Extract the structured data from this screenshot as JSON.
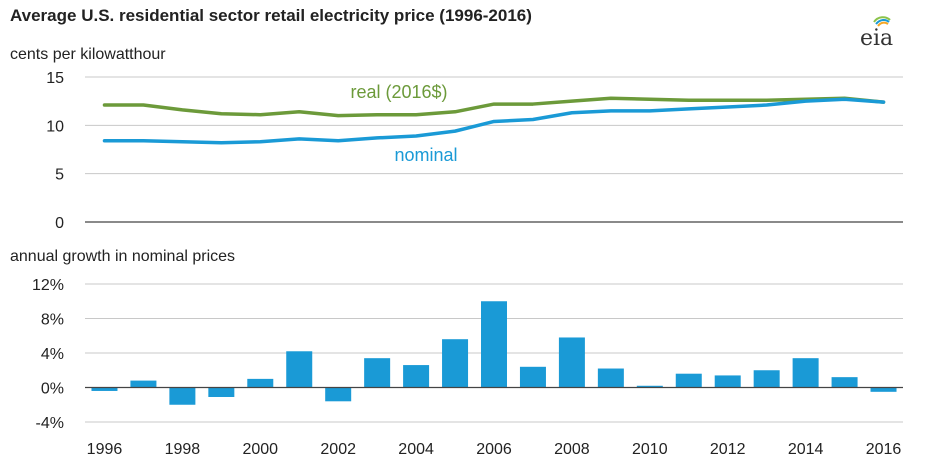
{
  "header": {
    "title": "Average U.S. residential sector retail electricity price (1996-2016)",
    "logo_text": "eia"
  },
  "colors": {
    "real": "#6c9a3a",
    "nominal": "#1a9ad6",
    "bar": "#1a9ad6",
    "grid": "#c8c8c8",
    "axis": "#444444"
  },
  "chart_data": [
    {
      "type": "line",
      "title": "",
      "ylabel": "cents per kilowatthour",
      "ylim": [
        0,
        15
      ],
      "yticks": [
        "0",
        "5",
        "10",
        "15"
      ],
      "yticks_values": [
        0,
        5,
        10,
        15
      ],
      "grid": true,
      "x": [
        1996,
        1997,
        1998,
        1999,
        2000,
        2001,
        2002,
        2003,
        2004,
        2005,
        2006,
        2007,
        2008,
        2009,
        2010,
        2011,
        2012,
        2013,
        2014,
        2015,
        2016
      ],
      "series": [
        {
          "name": "real (2016$)",
          "values": [
            12.1,
            12.1,
            11.6,
            11.2,
            11.1,
            11.4,
            11.0,
            11.1,
            11.1,
            11.4,
            12.2,
            12.2,
            12.5,
            12.8,
            12.7,
            12.6,
            12.6,
            12.6,
            12.7,
            12.8,
            12.4
          ]
        },
        {
          "name": "nominal",
          "values": [
            8.4,
            8.4,
            8.3,
            8.2,
            8.3,
            8.6,
            8.4,
            8.7,
            8.9,
            9.4,
            10.4,
            10.6,
            11.3,
            11.5,
            11.5,
            11.7,
            11.9,
            12.1,
            12.5,
            12.7,
            12.4
          ]
        }
      ]
    },
    {
      "type": "bar",
      "title": "",
      "ylabel": "annual growth in nominal prices",
      "ylim": [
        -4,
        12
      ],
      "yticks": [
        "-4%",
        "0%",
        "4%",
        "8%",
        "12%"
      ],
      "yticks_values": [
        -4,
        0,
        4,
        8,
        12
      ],
      "grid": true,
      "categories": [
        1996,
        1997,
        1998,
        1999,
        2000,
        2001,
        2002,
        2003,
        2004,
        2005,
        2006,
        2007,
        2008,
        2009,
        2010,
        2011,
        2012,
        2013,
        2014,
        2015,
        2016
      ],
      "values": [
        -0.4,
        0.8,
        -2.0,
        -1.1,
        1.0,
        4.2,
        -1.6,
        3.4,
        2.6,
        5.6,
        10.0,
        2.4,
        5.8,
        2.2,
        0.2,
        1.6,
        1.4,
        2.0,
        3.4,
        1.2,
        -0.5
      ]
    }
  ],
  "x_axis": {
    "tick_labels": [
      "1996",
      "1998",
      "2000",
      "2002",
      "2004",
      "2006",
      "2008",
      "2010",
      "2012",
      "2014",
      "2016"
    ],
    "tick_values": [
      1996,
      1998,
      2000,
      2002,
      2004,
      2006,
      2008,
      2010,
      2012,
      2014,
      2016
    ]
  }
}
